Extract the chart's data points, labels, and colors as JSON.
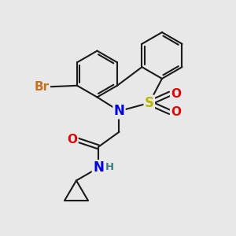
{
  "bg_color": "#e8e8e8",
  "bond_color": "#1a1a1a",
  "bond_width": 1.5,
  "atom_colors": {
    "Br": "#c87020",
    "S": "#b8b800",
    "N": "#0000e0",
    "O": "#e00000",
    "H": "#3a8080",
    "C": "#1a1a1a"
  },
  "font_size": 10.5
}
